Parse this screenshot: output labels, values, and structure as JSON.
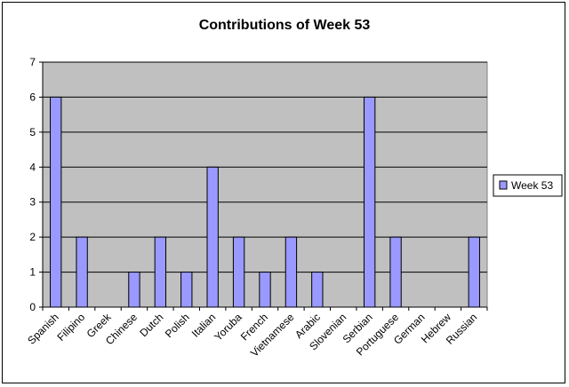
{
  "chart_data": {
    "type": "bar",
    "title": "Contributions of Week 53",
    "xlabel": "",
    "ylabel": "",
    "categories": [
      "Spanish",
      "Filipino",
      "Greek",
      "Chinese",
      "Dutch",
      "Polish",
      "Italian",
      "Yoruba",
      "French",
      "Vietnamese",
      "Arabic",
      "Slovenian",
      "Serbian",
      "Portuguese",
      "German",
      "Hebrew",
      "Russian"
    ],
    "series": [
      {
        "name": "Week 53",
        "values": [
          6,
          2,
          0,
          1,
          2,
          1,
          4,
          2,
          1,
          2,
          1,
          0,
          6,
          2,
          0,
          0,
          2
        ]
      }
    ],
    "ylim": [
      0,
      7
    ],
    "yticks": [
      "0",
      "1",
      "2",
      "3",
      "4",
      "5",
      "6",
      "7"
    ],
    "grid": true,
    "legend_position": "right",
    "colors": {
      "plot_background": "#c0c0c0",
      "bar_fill": "#9999ff",
      "bar_stroke": "#000000",
      "gridline": "#000000"
    }
  }
}
